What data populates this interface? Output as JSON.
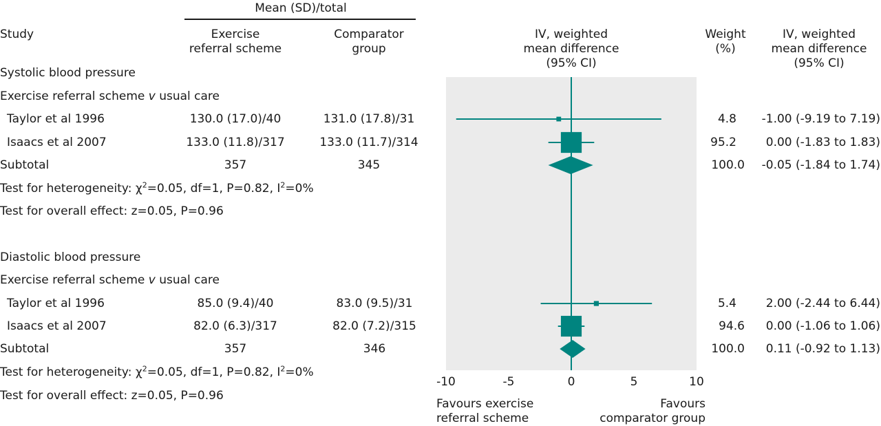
{
  "header": {
    "group_title": "Mean (SD)/total",
    "study": "Study",
    "exercise_col": [
      "Exercise",
      "referral scheme"
    ],
    "comparator_col": [
      "Comparator",
      "group"
    ],
    "plot_col": [
      "IV, weighted",
      "mean difference",
      "(95% CI)"
    ],
    "weight_col": [
      "Weight",
      "(%)"
    ],
    "effect_col": [
      "IV, weighted",
      "mean difference",
      "(95% CI)"
    ]
  },
  "sections": [
    {
      "title": "Systolic blood pressure",
      "subgroup": [
        "Exercise referral scheme ",
        "v",
        " usual care"
      ],
      "studies": [
        {
          "name": "Taylor et al 1996",
          "exercise": "130.0 (17.0)/40",
          "comparator": "131.0 (17.8)/31",
          "weight": "4.8",
          "effect": "-1.00 (-9.19 to 7.19)"
        },
        {
          "name": "Isaacs et al 2007",
          "exercise": "133.0 (11.8)/317",
          "comparator": "133.0 (11.7)/314",
          "weight": "95.2",
          "effect": "0.00 (-1.83 to 1.83)"
        }
      ],
      "subtotal": {
        "label": "Subtotal",
        "exercise": "357",
        "comparator": "345",
        "weight": "100.0",
        "effect": "-0.05 (-1.84 to 1.74)"
      },
      "heterogeneity": [
        "Test for heterogeneity: ",
        "χ",
        "2",
        "=0.05, df=1, P=0.82, I",
        "2",
        "=0%"
      ],
      "overall": "Test for overall effect: z=0.05, P=0.96"
    },
    {
      "title": "Diastolic blood pressure",
      "subgroup": [
        "Exercise referral scheme ",
        "v",
        " usual care"
      ],
      "studies": [
        {
          "name": "Taylor et al 1996",
          "exercise": "85.0 (9.4)/40",
          "comparator": "83.0 (9.5)/31",
          "weight": "5.4",
          "effect": "2.00 (-2.44 to 6.44)"
        },
        {
          "name": "Isaacs et al 2007",
          "exercise": "82.0 (6.3)/317",
          "comparator": "82.0 (7.2)/315",
          "weight": "94.6",
          "effect": "0.00 (-1.06 to 1.06)"
        }
      ],
      "subtotal": {
        "label": "Subtotal",
        "exercise": "357",
        "comparator": "346",
        "weight": "100.0",
        "effect": "0.11 (-0.92 to 1.13)"
      },
      "heterogeneity": [
        "Test for heterogeneity: ",
        "χ",
        "2",
        "=0.05, df=1, P=0.82, I",
        "2",
        "=0%"
      ],
      "overall": "Test for overall effect: z=0.05, P=0.96"
    }
  ],
  "footer": {
    "favours_left": [
      "Favours exercise",
      "referral scheme"
    ],
    "favours_right": [
      "Favours",
      "comparator group"
    ]
  },
  "colors": {
    "marker": "#00847f",
    "plot_bg": "#ebebeb",
    "text": "#1a1a1a"
  },
  "chart_data": {
    "type": "forest",
    "xlim": [
      -10,
      10
    ],
    "xticks": [
      -10,
      -5,
      0,
      5,
      10
    ],
    "tick_labels": [
      "-10",
      "-5",
      "0",
      "5",
      "10"
    ],
    "reference_line": 0,
    "rows": [
      {
        "study": "Taylor et al 1996",
        "group": "Systolic blood pressure",
        "kind": "study",
        "estimate": -1.0,
        "lower": -9.19,
        "upper": 7.19,
        "weight": 4.8
      },
      {
        "study": "Isaacs et al 2007",
        "group": "Systolic blood pressure",
        "kind": "study",
        "estimate": 0.0,
        "lower": -1.83,
        "upper": 1.83,
        "weight": 95.2
      },
      {
        "study": "Subtotal",
        "group": "Systolic blood pressure",
        "kind": "subtotal",
        "estimate": -0.05,
        "lower": -1.84,
        "upper": 1.74,
        "weight": 100.0
      },
      {
        "study": "Taylor et al 1996",
        "group": "Diastolic blood pressure",
        "kind": "study",
        "estimate": 2.0,
        "lower": -2.44,
        "upper": 6.44,
        "weight": 5.4
      },
      {
        "study": "Isaacs et al 2007",
        "group": "Diastolic blood pressure",
        "kind": "study",
        "estimate": 0.0,
        "lower": -1.06,
        "upper": 1.06,
        "weight": 94.6
      },
      {
        "study": "Subtotal",
        "group": "Diastolic blood pressure",
        "kind": "subtotal",
        "estimate": 0.11,
        "lower": -0.92,
        "upper": 1.13,
        "weight": 100.0
      }
    ]
  }
}
